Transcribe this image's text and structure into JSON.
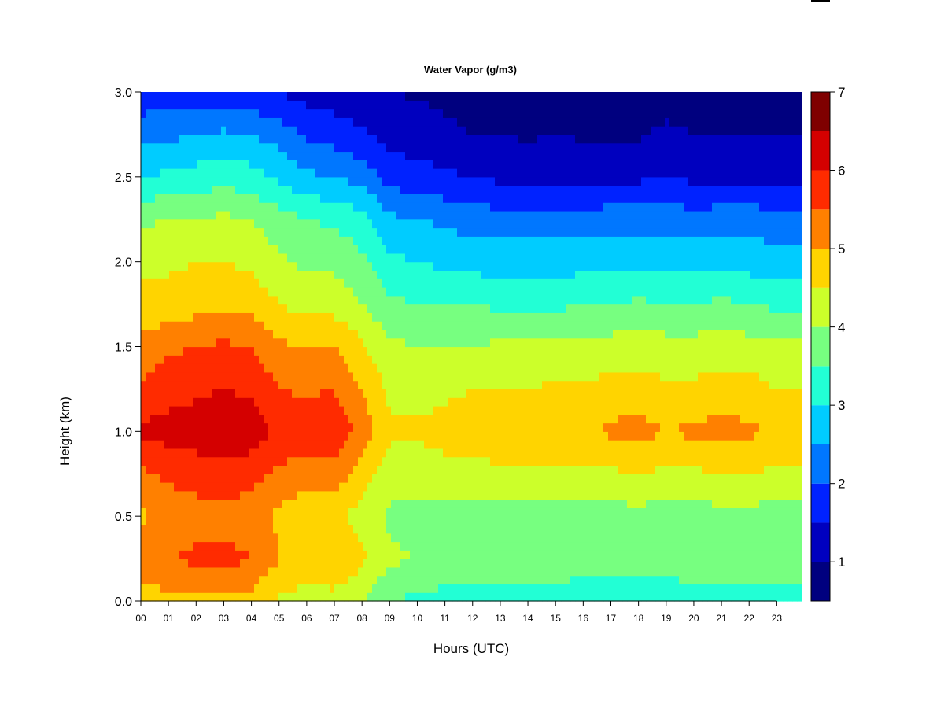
{
  "chart_data": {
    "type": "heatmap",
    "title": "Water Vapor (g/m3)",
    "xlabel": "Hours (UTC)",
    "ylabel": "Height (km)",
    "xlim": [
      0,
      23.9
    ],
    "ylim": [
      0.0,
      3.0
    ],
    "x_ticks": [
      0,
      1,
      2,
      3,
      4,
      5,
      6,
      7,
      8,
      9,
      10,
      11,
      12,
      13,
      14,
      15,
      16,
      17,
      18,
      19,
      20,
      21,
      22,
      23
    ],
    "x_tick_labels": [
      "00",
      "01",
      "02",
      "03",
      "04",
      "05",
      "06",
      "07",
      "08",
      "09",
      "10",
      "11",
      "12",
      "13",
      "14",
      "15",
      "16",
      "17",
      "18",
      "19",
      "20",
      "21",
      "22",
      "23"
    ],
    "y_ticks": [
      0.0,
      0.5,
      1.0,
      1.5,
      2.0,
      2.5,
      3.0
    ],
    "y_tick_labels": [
      "0.0",
      "0.5",
      "1.0",
      "1.5",
      "2.0",
      "2.5",
      "3.0"
    ],
    "colorbar": {
      "levels": [
        0.5,
        1.0,
        1.5,
        2.0,
        2.5,
        3.0,
        3.5,
        4.0,
        4.5,
        5.0,
        5.5,
        6.0,
        6.5,
        7.0
      ],
      "colors": [
        "#00007F",
        "#0000BF",
        "#0022FF",
        "#0077FF",
        "#00CCFF",
        "#22FFD5",
        "#77FF80",
        "#CCFF2A",
        "#FFD400",
        "#FF8000",
        "#FF2B00",
        "#D40000",
        "#7F0000"
      ],
      "tick_values": [
        1,
        2,
        3,
        4,
        5,
        6,
        7
      ],
      "tick_labels": [
        "1",
        "2",
        "3",
        "4",
        "5",
        "6",
        "7"
      ]
    },
    "grid": false,
    "hours": [
      0,
      1,
      2,
      3,
      4,
      5,
      6,
      7,
      8,
      9,
      10,
      11,
      12,
      13,
      14,
      15,
      16,
      17,
      18,
      19,
      20,
      21,
      22,
      23
    ],
    "heights_km": [
      0.0,
      0.25,
      0.5,
      0.75,
      1.0,
      1.25,
      1.5,
      1.75,
      2.0,
      2.25,
      2.5,
      2.75,
      3.0
    ],
    "values": [
      [
        4.7,
        5.3,
        4.9,
        5.4,
        6.1,
        5.6,
        5.2,
        4.6,
        4.4,
        3.9,
        3.0,
        2.4,
        1.6
      ],
      [
        4.9,
        5.5,
        5.2,
        5.6,
        6.2,
        5.8,
        5.4,
        4.7,
        4.4,
        4.0,
        3.1,
        2.4,
        1.6
      ],
      [
        4.9,
        5.6,
        5.3,
        5.7,
        6.3,
        5.9,
        5.5,
        4.8,
        4.5,
        4.0,
        3.2,
        2.5,
        1.6
      ],
      [
        4.9,
        5.7,
        5.3,
        5.8,
        6.4,
        6.0,
        5.6,
        4.9,
        4.5,
        4.1,
        3.3,
        2.6,
        1.7
      ],
      [
        4.8,
        5.5,
        5.2,
        5.7,
        6.3,
        5.9,
        5.5,
        4.8,
        4.4,
        4.0,
        3.2,
        2.5,
        1.6
      ],
      [
        4.4,
        5.0,
        4.9,
        5.4,
        5.9,
        5.5,
        5.1,
        4.5,
        4.1,
        3.7,
        2.9,
        2.3,
        1.5
      ],
      [
        4.2,
        5.0,
        4.6,
        5.2,
        5.9,
        5.4,
        5.0,
        4.3,
        3.9,
        3.5,
        2.6,
        1.9,
        1.3
      ],
      [
        4.3,
        5.0,
        4.6,
        5.3,
        5.9,
        5.5,
        5.0,
        4.3,
        3.9,
        3.4,
        2.5,
        1.8,
        1.2
      ],
      [
        4.0,
        4.6,
        4.3,
        4.8,
        5.3,
        5.0,
        4.6,
        4.0,
        3.6,
        3.2,
        2.3,
        1.6,
        1.1
      ],
      [
        3.5,
        4.1,
        3.9,
        4.2,
        4.6,
        4.4,
        4.1,
        3.6,
        3.1,
        2.6,
        1.8,
        1.3,
        1.0
      ],
      [
        3.4,
        4.0,
        3.8,
        4.2,
        4.6,
        4.3,
        4.0,
        3.5,
        3.0,
        2.5,
        1.7,
        1.2,
        0.95
      ],
      [
        3.3,
        3.9,
        3.8,
        4.3,
        4.7,
        4.4,
        4.0,
        3.5,
        2.9,
        2.4,
        1.6,
        1.1,
        0.9
      ],
      [
        3.1,
        3.9,
        3.8,
        4.3,
        4.8,
        4.5,
        4.0,
        3.5,
        2.8,
        2.3,
        1.5,
        1.0,
        0.85
      ],
      [
        3.1,
        3.9,
        3.8,
        4.4,
        4.8,
        4.5,
        4.1,
        3.4,
        2.8,
        2.2,
        1.4,
        1.0,
        0.85
      ],
      [
        3.1,
        3.9,
        3.8,
        4.4,
        4.9,
        4.5,
        4.1,
        3.4,
        2.8,
        2.2,
        1.3,
        0.95,
        0.8
      ],
      [
        3.1,
        4.0,
        3.8,
        4.4,
        5.0,
        4.6,
        4.1,
        3.4,
        2.8,
        2.2,
        1.4,
        1.0,
        0.85
      ],
      [
        3.0,
        3.9,
        3.8,
        4.4,
        4.9,
        4.6,
        4.1,
        3.5,
        2.8,
        2.2,
        1.3,
        0.95,
        0.8
      ],
      [
        3.0,
        3.9,
        3.8,
        4.4,
        5.1,
        4.7,
        4.2,
        3.5,
        2.8,
        2.3,
        1.4,
        0.95,
        0.8
      ],
      [
        3.0,
        3.9,
        3.8,
        4.5,
        5.2,
        4.7,
        4.3,
        3.6,
        2.9,
        2.3,
        1.4,
        0.95,
        0.8
      ],
      [
        3.0,
        3.9,
        3.8,
        4.4,
        5.0,
        4.6,
        4.2,
        3.5,
        2.8,
        2.3,
        1.5,
        1.1,
        0.8
      ],
      [
        3.1,
        4.0,
        3.8,
        4.4,
        5.1,
        4.6,
        4.2,
        3.5,
        2.8,
        2.2,
        1.4,
        1.0,
        0.75
      ],
      [
        3.1,
        4.0,
        3.8,
        4.5,
        5.2,
        4.7,
        4.3,
        3.6,
        2.9,
        2.3,
        1.4,
        1.0,
        0.75
      ],
      [
        3.1,
        4.0,
        3.8,
        4.5,
        5.1,
        4.7,
        4.2,
        3.5,
        2.8,
        2.3,
        1.4,
        1.0,
        0.8
      ],
      [
        3.1,
        3.9,
        3.8,
        4.4,
        4.9,
        4.5,
        4.1,
        3.4,
        2.7,
        2.2,
        1.4,
        1.0,
        0.8
      ]
    ]
  }
}
